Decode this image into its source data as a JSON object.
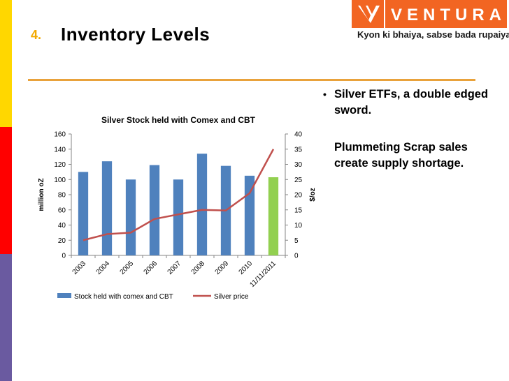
{
  "slide": {
    "number": "4.",
    "title": "Inventory Levels"
  },
  "logo": {
    "word": "VENTURA",
    "tagline": "Kyon ki bhaiya, sabse bada rupaiya."
  },
  "bullets": {
    "b1": "Silver ETFs, a double edged sword.",
    "b2": "Plummeting Scrap sales create supply shortage."
  },
  "colors": {
    "bar": "#4f81bd",
    "bar_highlight": "#92d050",
    "line": "#c0504d",
    "accent": "#f26522",
    "rule": "#e9a23b"
  },
  "chart_data": {
    "type": "bar",
    "title": "Silver Stock held with Comex and CBT",
    "categories": [
      "2003",
      "2004",
      "2005",
      "2006",
      "2007",
      "2008",
      "2009",
      "2010",
      "11/11/2011"
    ],
    "series": [
      {
        "name": "Stock held with comex and CBT",
        "type": "bar",
        "axis": "left",
        "values": [
          110,
          124,
          100,
          119,
          100,
          134,
          118,
          105,
          103
        ]
      },
      {
        "name": "Silver price",
        "type": "line",
        "axis": "right",
        "values": [
          5,
          7,
          7.5,
          12,
          13.5,
          15,
          14.8,
          20.5,
          35
        ]
      }
    ],
    "ylabel": "million oZ",
    "y2label": "$/oz",
    "ylim": [
      0,
      160
    ],
    "y2lim": [
      0,
      40
    ],
    "yticks": [
      0,
      20,
      40,
      60,
      80,
      100,
      120,
      140,
      160
    ],
    "y2ticks": [
      0,
      5,
      10,
      15,
      20,
      25,
      30,
      35,
      40
    ],
    "legend": "bottom",
    "grid": false
  }
}
